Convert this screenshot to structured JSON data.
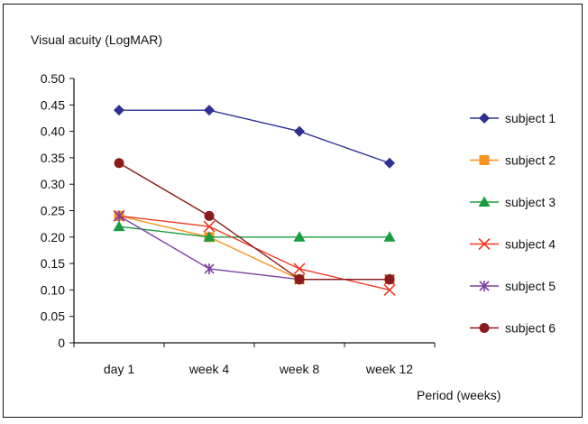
{
  "chart_data": {
    "type": "line",
    "title": "",
    "ylabel": "Visual acuity (LogMAR)",
    "xlabel": "Period (weeks)",
    "categories": [
      "day 1",
      "week 4",
      "week 8",
      "week 12"
    ],
    "ylim": [
      0,
      0.5
    ],
    "yticks": [
      "0.50",
      "0.45",
      "0.40",
      "0.35",
      "0.30",
      "0.25",
      "0.20",
      "0.15",
      "0.10",
      "0.05",
      "0"
    ],
    "ytick_values": [
      0.5,
      0.45,
      0.4,
      0.35,
      0.3,
      0.25,
      0.2,
      0.15,
      0.1,
      0.05,
      0
    ],
    "grid": false,
    "legend_position": "right",
    "series": [
      {
        "name": "subject 1",
        "values": [
          0.44,
          0.44,
          0.4,
          0.34
        ],
        "color": "#2e3192",
        "marker": "diamond"
      },
      {
        "name": "subject 2",
        "values": [
          0.24,
          0.2,
          0.12,
          0.12
        ],
        "color": "#f7931e",
        "marker": "square"
      },
      {
        "name": "subject 3",
        "values": [
          0.22,
          0.2,
          0.2,
          0.2
        ],
        "color": "#1a9c3e",
        "marker": "triangle"
      },
      {
        "name": "subject 4",
        "values": [
          0.24,
          0.22,
          0.14,
          0.1
        ],
        "color": "#ed3b24",
        "marker": "x"
      },
      {
        "name": "subject 5",
        "values": [
          0.24,
          0.14,
          0.12,
          0.12
        ],
        "color": "#7b3fa0",
        "marker": "star"
      },
      {
        "name": "subject 6",
        "values": [
          0.34,
          0.24,
          0.12,
          0.12
        ],
        "color": "#8b1a1a",
        "marker": "circle"
      }
    ]
  }
}
